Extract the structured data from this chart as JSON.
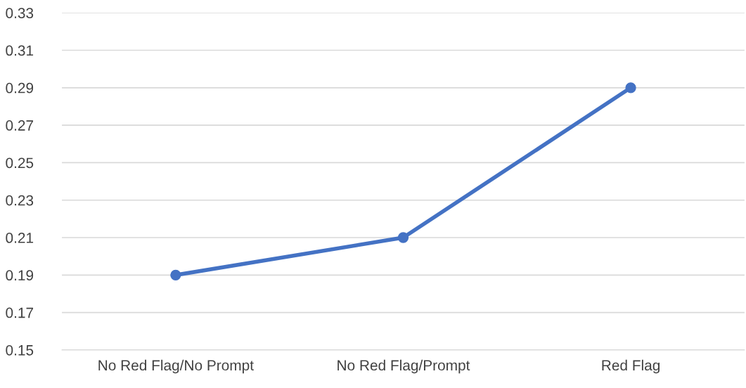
{
  "chart_data": {
    "type": "line",
    "categories": [
      "No Red Flag/No Prompt",
      "No Red Flag/Prompt",
      "Red Flag"
    ],
    "series": [
      {
        "color": "#4472c4",
        "values": [
          0.19,
          0.21,
          0.29
        ]
      }
    ],
    "ylim": [
      0.15,
      0.33
    ],
    "yticks": [
      0.15,
      0.17,
      0.19,
      0.21,
      0.23,
      0.25,
      0.27,
      0.29,
      0.31,
      0.33
    ],
    "grid": "y",
    "marker": "circle",
    "line_style": "solid"
  }
}
